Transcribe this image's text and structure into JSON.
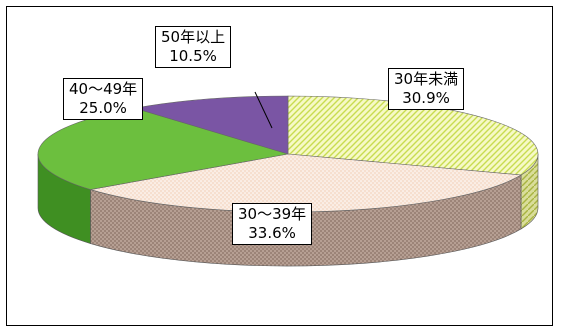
{
  "chart_data": {
    "type": "pie",
    "style": "3d",
    "title": "",
    "categories": [
      "30年未満",
      "30～39年",
      "40～49年",
      "50年以上"
    ],
    "values": [
      30.9,
      33.6,
      25.0,
      10.5
    ],
    "value_labels": [
      "30.9%",
      "33.6%",
      "25.0%",
      "10.5%"
    ],
    "colors": [
      "#ecf5a8",
      "#f2d6c4",
      "#6cbf3e",
      "#7a55a4"
    ],
    "legend": "none",
    "start": "top-center, clockwise"
  }
}
